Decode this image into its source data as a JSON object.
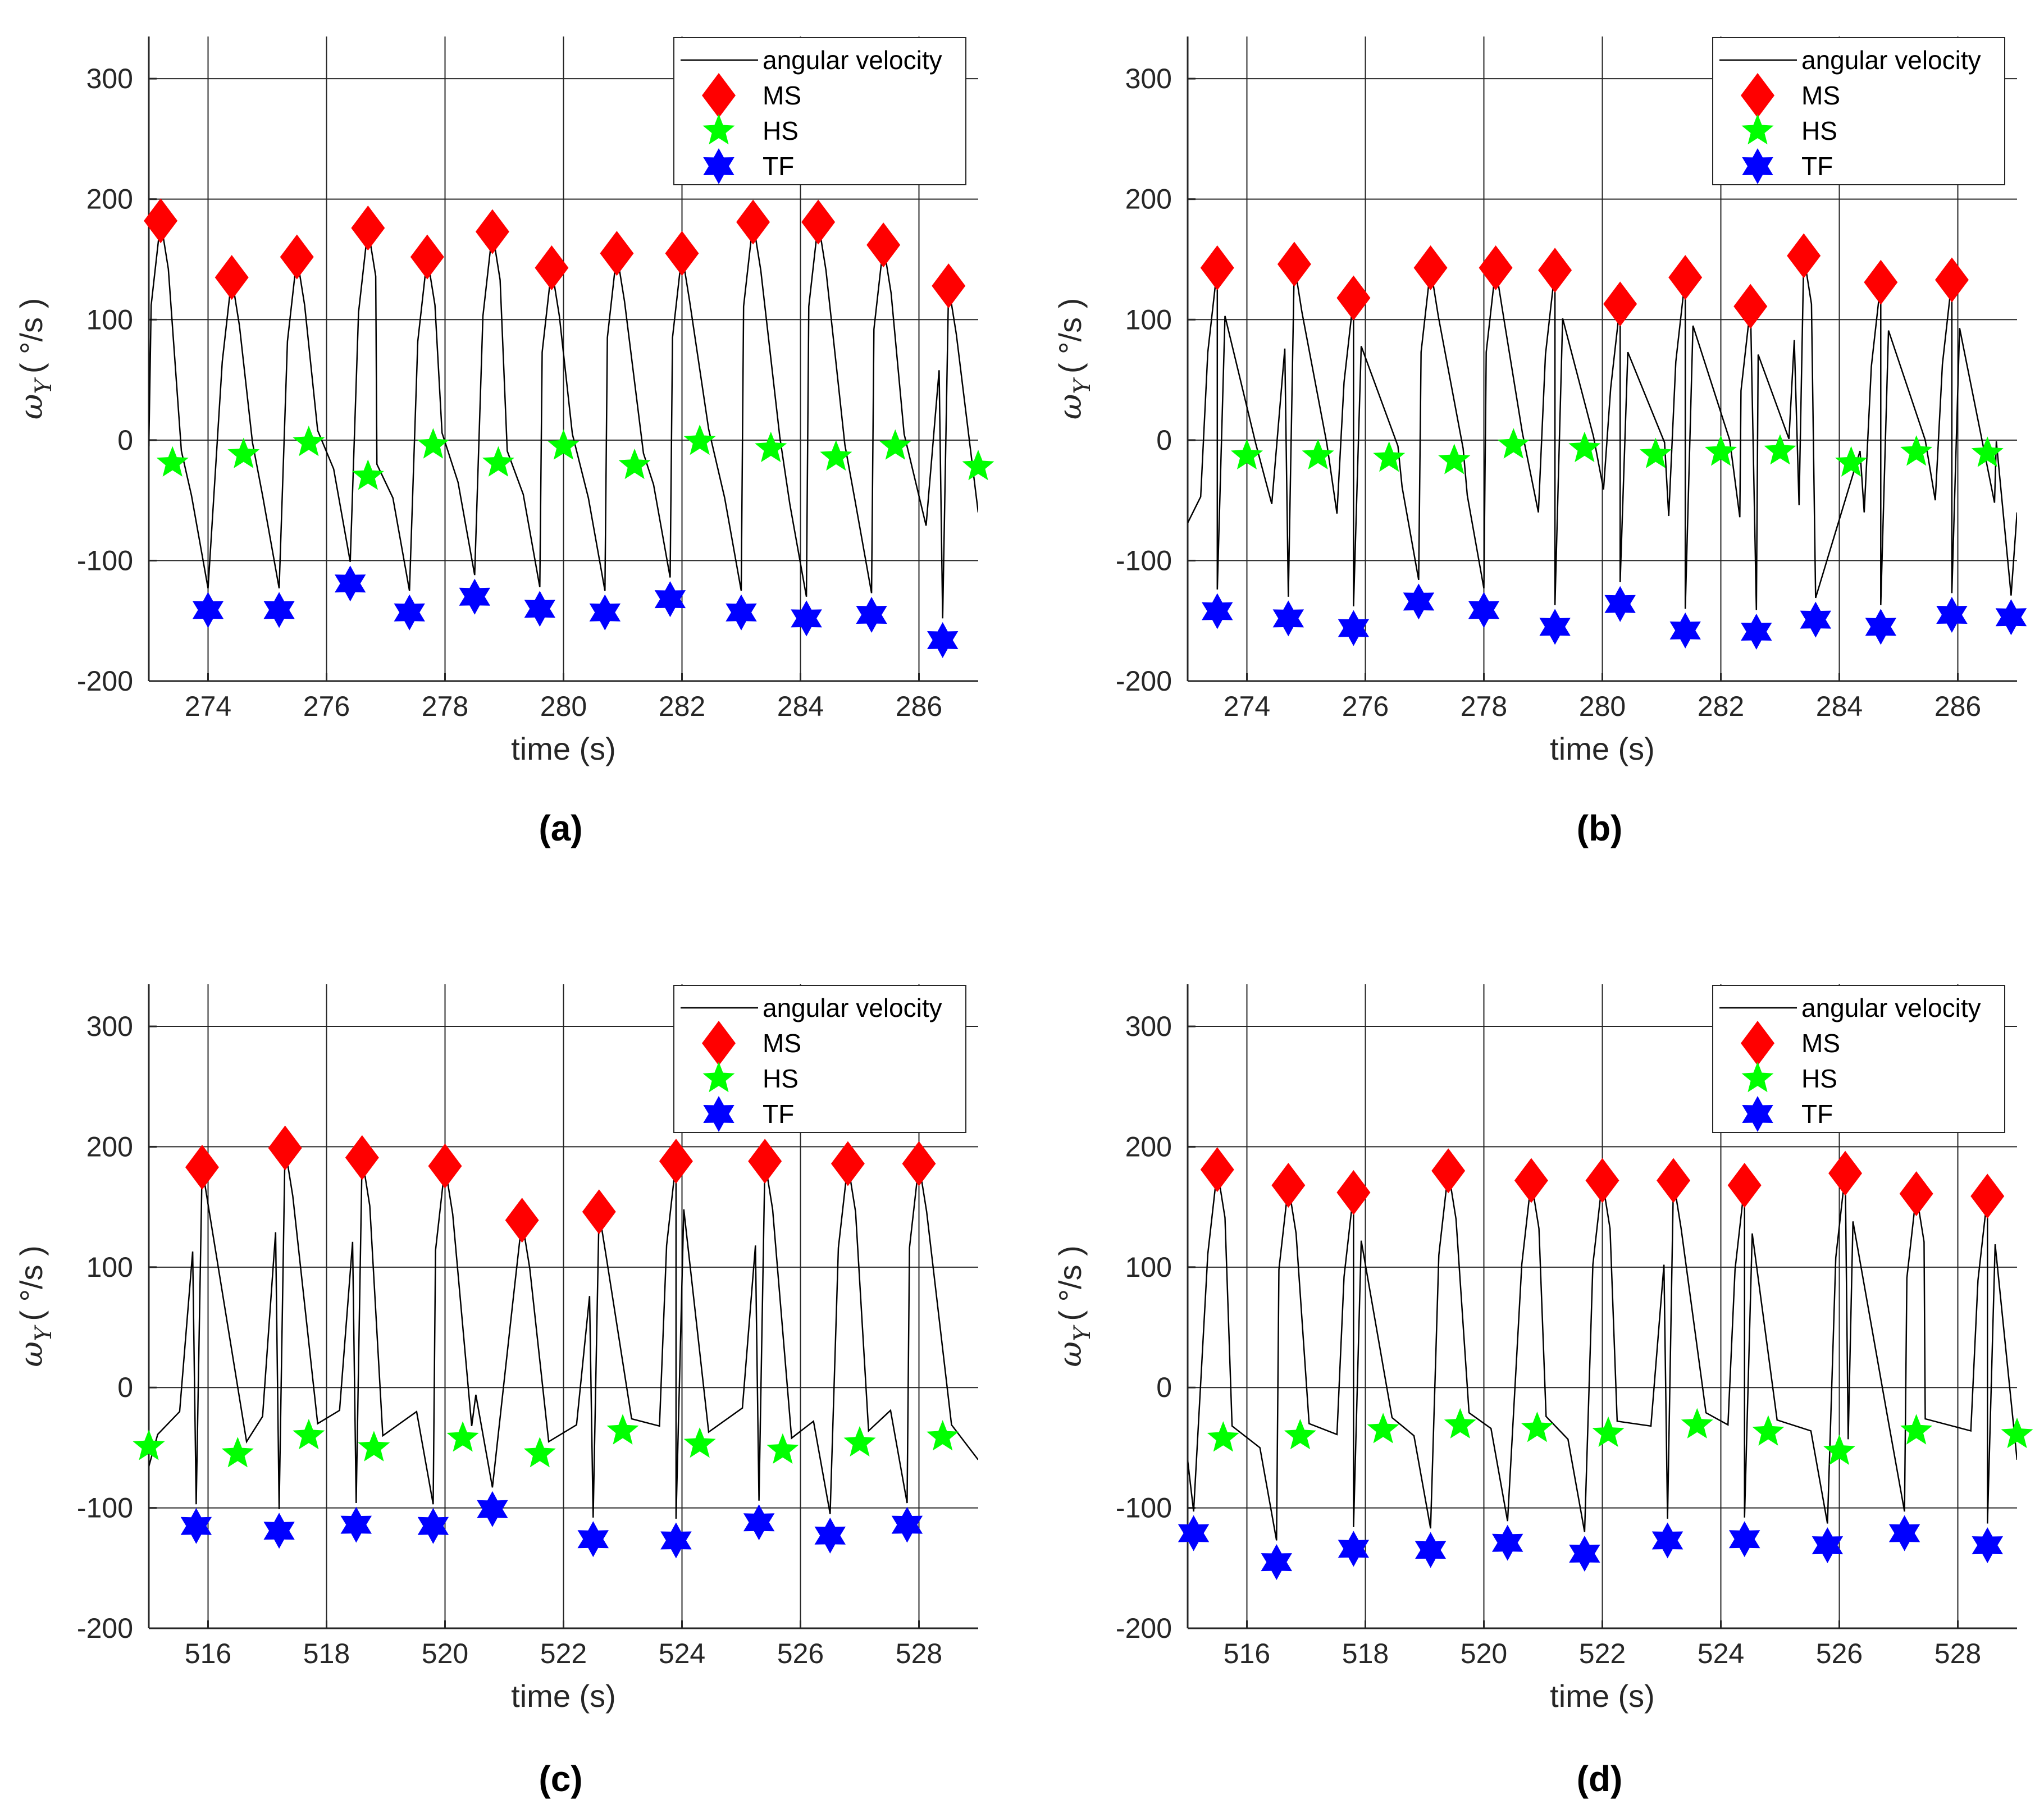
{
  "colors": {
    "signal": "#000000",
    "ms": "#ff0000",
    "hs": "#00ff00",
    "tf": "#0000ff",
    "grid": "#262626"
  },
  "chart_data": [
    {
      "id": "a",
      "type": "line",
      "caption": "(a)",
      "xlabel": "time (s)",
      "ylabel_symbol": "ω",
      "ylabel_subscript": "Y",
      "ylabel_unit": "( °/s )",
      "xlim": [
        273,
        287
      ],
      "ylim": [
        -200,
        335
      ],
      "xticks": [
        274,
        276,
        278,
        280,
        282,
        284,
        286
      ],
      "yticks": [
        -200,
        -100,
        0,
        100,
        200,
        300
      ],
      "legend": {
        "position": "top-right",
        "entries": [
          "angular velocity",
          "MS",
          "HS",
          "TF"
        ]
      },
      "series": [
        {
          "name": "MS",
          "marker": "diamond",
          "x": [
            273.2,
            274.4,
            275.5,
            276.7,
            277.7,
            278.8,
            279.8,
            280.9,
            282.0,
            283.2,
            284.3,
            285.4,
            286.5
          ],
          "y": [
            182,
            135,
            152,
            176,
            152,
            173,
            143,
            155,
            155,
            181,
            181,
            162,
            128
          ]
        },
        {
          "name": "HS",
          "marker": "star",
          "x": [
            273.4,
            274.6,
            275.7,
            276.7,
            277.8,
            278.9,
            280.0,
            281.2,
            282.3,
            283.5,
            284.6,
            285.6,
            287.0
          ],
          "y": [
            -19,
            -12,
            -2,
            -30,
            -4,
            -19,
            -5,
            -21,
            -1,
            -7,
            -14,
            -5,
            -22
          ]
        },
        {
          "name": "TF",
          "marker": "hexagram",
          "x": [
            274.0,
            275.2,
            276.4,
            277.4,
            278.5,
            279.6,
            280.7,
            281.8,
            283.0,
            284.1,
            285.2,
            286.4
          ],
          "y": [
            -141,
            -141,
            -119,
            -143,
            -130,
            -140,
            -143,
            -132,
            -143,
            -148,
            -145,
            -166
          ]
        }
      ]
    },
    {
      "id": "b",
      "type": "line",
      "caption": "(b)",
      "xlabel": "time (s)",
      "ylabel_symbol": "ω",
      "ylabel_subscript": "Y",
      "ylabel_unit": "( °/s )",
      "xlim": [
        273,
        287
      ],
      "ylim": [
        -200,
        335
      ],
      "xticks": [
        274,
        276,
        278,
        280,
        282,
        284,
        286
      ],
      "yticks": [
        -200,
        -100,
        0,
        100,
        200,
        300
      ],
      "legend": {
        "position": "top-right",
        "entries": [
          "angular velocity",
          "MS",
          "HS",
          "TF"
        ]
      },
      "series": [
        {
          "name": "MS",
          "marker": "diamond",
          "x": [
            273.5,
            274.8,
            275.8,
            277.1,
            278.2,
            279.2,
            280.3,
            281.4,
            282.5,
            283.4,
            284.7,
            285.9
          ],
          "y": [
            143,
            146,
            118,
            143,
            143,
            141,
            113,
            135,
            111,
            153,
            131,
            133
          ]
        },
        {
          "name": "HS",
          "marker": "star",
          "x": [
            274.0,
            275.2,
            276.4,
            277.5,
            278.5,
            279.7,
            280.9,
            282.0,
            283.0,
            284.2,
            285.3,
            286.5
          ],
          "y": [
            -13,
            -13,
            -15,
            -17,
            -4,
            -7,
            -12,
            -10,
            -9,
            -19,
            -10,
            -11
          ]
        },
        {
          "name": "TF",
          "marker": "hexagram",
          "x": [
            273.5,
            274.7,
            275.8,
            276.9,
            278.0,
            279.2,
            280.3,
            281.4,
            282.6,
            283.6,
            284.7,
            285.9,
            286.9
          ],
          "y": [
            -142,
            -148,
            -156,
            -134,
            -141,
            -155,
            -136,
            -158,
            -159,
            -149,
            -155,
            -145,
            -147
          ]
        }
      ]
    },
    {
      "id": "c",
      "type": "line",
      "caption": "(c)",
      "xlabel": "time (s)",
      "ylabel_symbol": "ω",
      "ylabel_subscript": "Y",
      "ylabel_unit": "( °/s )",
      "xlim": [
        515,
        529
      ],
      "ylim": [
        -200,
        335
      ],
      "xticks": [
        516,
        518,
        520,
        522,
        524,
        526,
        528
      ],
      "yticks": [
        -200,
        -100,
        0,
        100,
        200,
        300
      ],
      "legend": {
        "position": "top-right",
        "entries": [
          "angular velocity",
          "MS",
          "HS",
          "TF"
        ]
      },
      "series": [
        {
          "name": "MS",
          "marker": "diamond",
          "x": [
            515.9,
            517.3,
            518.6,
            520.0,
            521.3,
            522.6,
            523.9,
            525.4,
            526.8,
            528.0
          ],
          "y": [
            183,
            199,
            191,
            184,
            139,
            146,
            188,
            188,
            186,
            186
          ]
        },
        {
          "name": "HS",
          "marker": "star",
          "x": [
            515.0,
            516.5,
            517.7,
            518.8,
            520.3,
            521.6,
            523.0,
            524.3,
            525.7,
            527.0,
            528.4
          ],
          "y": [
            -49,
            -55,
            -40,
            -50,
            -42,
            -55,
            -36,
            -47,
            -52,
            -46,
            -41
          ]
        },
        {
          "name": "TF",
          "marker": "hexagram",
          "x": [
            515.8,
            517.2,
            518.5,
            519.8,
            520.8,
            522.5,
            523.9,
            525.3,
            526.5,
            527.8
          ],
          "y": [
            -115,
            -119,
            -114,
            -115,
            -101,
            -126,
            -127,
            -112,
            -123,
            -114
          ]
        }
      ]
    },
    {
      "id": "d",
      "type": "line",
      "caption": "(d)",
      "xlabel": "time (s)",
      "ylabel_symbol": "ω",
      "ylabel_subscript": "Y",
      "ylabel_unit": "( °/s )",
      "xlim": [
        515,
        529
      ],
      "ylim": [
        -200,
        335
      ],
      "xticks": [
        516,
        518,
        520,
        522,
        524,
        526,
        528
      ],
      "yticks": [
        -200,
        -100,
        0,
        100,
        200,
        300
      ],
      "legend": {
        "position": "top-right",
        "entries": [
          "angular velocity",
          "MS",
          "HS",
          "TF"
        ]
      },
      "series": [
        {
          "name": "MS",
          "marker": "diamond",
          "x": [
            515.5,
            516.7,
            517.8,
            519.4,
            520.8,
            522.0,
            523.2,
            524.4,
            526.1,
            527.3,
            528.5
          ],
          "y": [
            181,
            168,
            162,
            180,
            172,
            172,
            172,
            168,
            178,
            161,
            159
          ]
        },
        {
          "name": "HS",
          "marker": "star",
          "x": [
            515.6,
            516.9,
            518.3,
            519.6,
            520.9,
            522.1,
            523.6,
            524.8,
            526.0,
            527.3,
            529.0
          ],
          "y": [
            -42,
            -40,
            -35,
            -31,
            -34,
            -38,
            -31,
            -37,
            -53,
            -36,
            -39
          ]
        },
        {
          "name": "TF",
          "marker": "hexagram",
          "x": [
            515.1,
            516.5,
            517.8,
            519.1,
            520.4,
            521.7,
            523.1,
            524.4,
            525.8,
            527.1,
            528.5
          ],
          "y": [
            -121,
            -145,
            -134,
            -135,
            -129,
            -138,
            -127,
            -126,
            -131,
            -121,
            -131
          ]
        }
      ]
    }
  ]
}
